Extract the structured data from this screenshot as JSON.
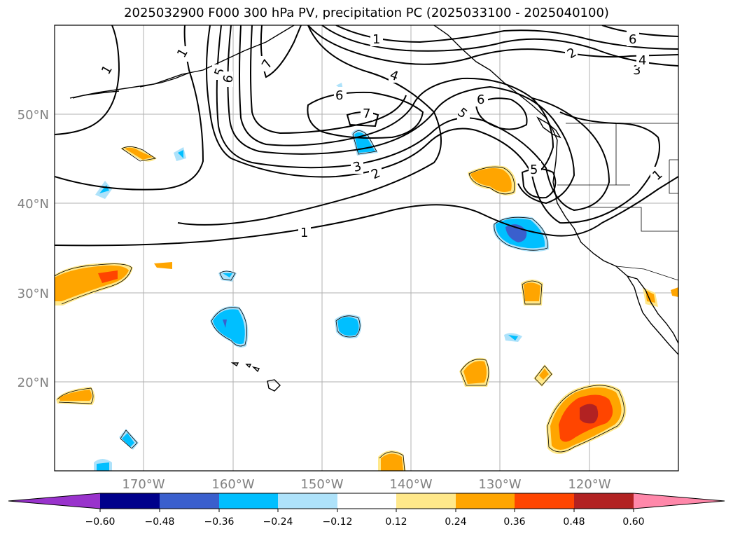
{
  "title": "2025032900 F000 300 hPa PV, precipitation PC (2025033100 - 2025040100)",
  "map": {
    "lat_labels": [
      "50°N",
      "40°N",
      "30°N",
      "20°N"
    ],
    "lon_labels": [
      "170°W",
      "160°W",
      "150°W",
      "140°W",
      "130°W",
      "120°W"
    ],
    "grid_color": "#b0b0b0",
    "coastline_color": "#000000",
    "contour_color": "#000000"
  },
  "pv_contour_labels": [
    "1",
    "1",
    "1",
    "1",
    "1",
    "2",
    "2",
    "3",
    "3",
    "4",
    "4",
    "5",
    "5",
    "5",
    "6",
    "6",
    "6",
    "6",
    "7",
    "7"
  ],
  "colorbar": {
    "colors": [
      "#9933cc",
      "#00008b",
      "#3a5fcd",
      "#00bfff",
      "#aee2fa",
      "#ffffff",
      "#ffe88a",
      "#ffa500",
      "#ff4500",
      "#b22222",
      "#ff88aa"
    ],
    "tick_labels": [
      "−0.60",
      "−0.48",
      "−0.36",
      "−0.24",
      "−0.12",
      "0.12",
      "0.24",
      "0.36",
      "0.48",
      "0.60"
    ]
  }
}
